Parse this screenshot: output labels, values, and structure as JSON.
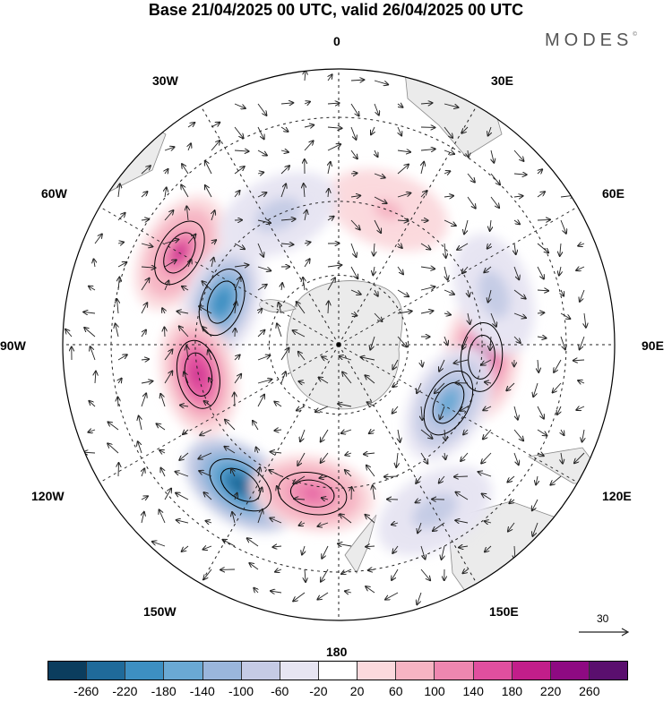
{
  "title": "Base 21/04/2025 00 UTC, valid 26/04/2025 00 UTC",
  "logo": "MODES",
  "logo_mark": "©",
  "projection": "south-polar-stereographic",
  "longitude_labels": {
    "l0": "0",
    "l30e": "30E",
    "l60e": "60E",
    "l90e": "90E",
    "l120e": "120E",
    "l150e": "150E",
    "l180": "180",
    "l150w": "150W",
    "l120w": "120W",
    "l90w": "90W",
    "l60w": "60W",
    "l30w": "30W"
  },
  "reference_vector": {
    "label": "30"
  },
  "colorbar": {
    "colors": [
      "#0b3d5e",
      "#1f6a9a",
      "#3d8fc2",
      "#6aa9d4",
      "#9ab6dc",
      "#c5cbe5",
      "#e7e5f2",
      "#ffffff",
      "#fbd9dd",
      "#f6b4c3",
      "#ee87b0",
      "#e04f9f",
      "#c21e8a",
      "#8e0a82",
      "#5a0f6e"
    ],
    "ticks": [
      "-260",
      "-220",
      "-180",
      "-140",
      "-100",
      "-60",
      "-20",
      "20",
      "60",
      "100",
      "140",
      "180",
      "220",
      "260"
    ]
  },
  "anomalies": [
    {
      "lon": 300,
      "lat": -40,
      "value": 180
    },
    {
      "lon": 290,
      "lat": -55,
      "value": -220
    },
    {
      "lon": 258,
      "lat": -50,
      "value": 200
    },
    {
      "lon": 215,
      "lat": -43,
      "value": -260
    },
    {
      "lon": 190,
      "lat": -48,
      "value": 160
    },
    {
      "lon": 95,
      "lat": -50,
      "value": 230
    },
    {
      "lon": 118,
      "lat": -55,
      "value": -170
    },
    {
      "lon": 72,
      "lat": -45,
      "value": -100
    },
    {
      "lon": 150,
      "lat": -38,
      "value": -100
    },
    {
      "lon": 20,
      "lat": -50,
      "value": 80
    },
    {
      "lon": 335,
      "lat": -50,
      "value": -90
    }
  ],
  "colors": {
    "land": "#ebebeb",
    "coast": "#8a8a8a",
    "contour": "#000000",
    "grid": "#222222"
  }
}
